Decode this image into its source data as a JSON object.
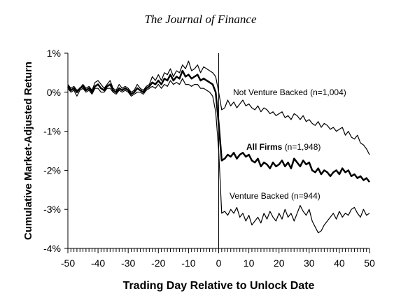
{
  "header": {
    "title": "The Journal of Finance"
  },
  "chart_data": {
    "type": "line",
    "xlabel": "Trading Day Relative to Unlock Date",
    "ylabel": "Cumulative Market-Adjusted Return",
    "xlim": [
      -50,
      50
    ],
    "ylim": [
      -4,
      1
    ],
    "x_ticks": [
      -50,
      -40,
      -30,
      -20,
      -10,
      0,
      10,
      20,
      30,
      40,
      50
    ],
    "y_ticks": [
      {
        "value": 1,
        "label": "1%"
      },
      {
        "value": 0,
        "label": "0%"
      },
      {
        "value": -1,
        "label": "-1%"
      },
      {
        "value": -2,
        "label": "-2%"
      },
      {
        "value": -3,
        "label": "-3%"
      },
      {
        "value": -4,
        "label": "-4%"
      }
    ],
    "reference_line_x": 0,
    "grid": false,
    "x": [
      -50,
      -49,
      -48,
      -47,
      -46,
      -45,
      -44,
      -43,
      -42,
      -41,
      -40,
      -39,
      -38,
      -37,
      -36,
      -35,
      -34,
      -33,
      -32,
      -31,
      -30,
      -29,
      -28,
      -27,
      -26,
      -25,
      -24,
      -23,
      -22,
      -21,
      -20,
      -19,
      -18,
      -17,
      -16,
      -15,
      -14,
      -13,
      -12,
      -11,
      -10,
      -9,
      -8,
      -7,
      -6,
      -5,
      -4,
      -3,
      -2,
      -1,
      0,
      1,
      2,
      3,
      4,
      5,
      6,
      7,
      8,
      9,
      10,
      11,
      12,
      13,
      14,
      15,
      16,
      17,
      18,
      19,
      20,
      21,
      22,
      23,
      24,
      25,
      26,
      27,
      28,
      29,
      30,
      31,
      32,
      33,
      34,
      35,
      36,
      37,
      38,
      39,
      40,
      41,
      42,
      43,
      44,
      45,
      46,
      47,
      48,
      49,
      50
    ],
    "series": [
      {
        "annotation": "Not Venture Backed (n=1,004)",
        "annotation_bold_part": "",
        "stroke_width": 1.2,
        "values": [
          0.2,
          0.1,
          0.15,
          0.05,
          0.1,
          0.2,
          0.1,
          0.15,
          0.05,
          0.25,
          0.3,
          0.2,
          0.1,
          0.2,
          0.3,
          0.1,
          0.05,
          0.2,
          0.1,
          0.15,
          0.1,
          0.0,
          0.05,
          0.2,
          0.1,
          0.05,
          0.15,
          0.2,
          0.4,
          0.3,
          0.45,
          0.3,
          0.5,
          0.45,
          0.6,
          0.4,
          0.55,
          0.5,
          0.7,
          0.6,
          0.8,
          0.55,
          0.6,
          0.7,
          0.5,
          0.65,
          0.6,
          0.55,
          0.5,
          0.4,
          0.0,
          -0.45,
          -0.4,
          -0.2,
          -0.35,
          -0.25,
          -0.4,
          -0.3,
          -0.2,
          -0.35,
          -0.3,
          -0.4,
          -0.45,
          -0.35,
          -0.5,
          -0.4,
          -0.45,
          -0.55,
          -0.5,
          -0.6,
          -0.55,
          -0.5,
          -0.65,
          -0.6,
          -0.7,
          -0.55,
          -0.6,
          -0.7,
          -0.6,
          -0.75,
          -0.7,
          -0.8,
          -0.85,
          -0.75,
          -0.9,
          -0.8,
          -0.85,
          -0.95,
          -0.9,
          -1.0,
          -0.95,
          -0.9,
          -1.1,
          -1.0,
          -1.15,
          -1.2,
          -1.1,
          -1.3,
          -1.35,
          -1.45,
          -1.6
        ]
      },
      {
        "annotation": "(n=1,948)",
        "annotation_bold_part": "All Firms",
        "stroke_width": 2.5,
        "values": [
          0.15,
          0.05,
          0.1,
          0.0,
          0.1,
          0.15,
          0.05,
          0.1,
          0.0,
          0.15,
          0.2,
          0.1,
          0.05,
          0.15,
          0.2,
          0.05,
          0.0,
          0.1,
          0.05,
          0.1,
          0.05,
          -0.05,
          0.0,
          0.1,
          0.05,
          0.0,
          0.1,
          0.15,
          0.25,
          0.2,
          0.3,
          0.2,
          0.35,
          0.3,
          0.45,
          0.3,
          0.4,
          0.35,
          0.55,
          0.4,
          0.45,
          0.35,
          0.4,
          0.45,
          0.3,
          0.35,
          0.3,
          0.25,
          0.2,
          0.0,
          -0.8,
          -1.75,
          -1.7,
          -1.6,
          -1.65,
          -1.55,
          -1.7,
          -1.6,
          -1.55,
          -1.65,
          -1.6,
          -1.75,
          -1.8,
          -1.7,
          -1.9,
          -1.8,
          -1.85,
          -1.95,
          -1.8,
          -1.9,
          -1.85,
          -1.75,
          -1.9,
          -1.8,
          -1.95,
          -1.7,
          -1.8,
          -1.9,
          -1.75,
          -1.85,
          -1.8,
          -2.0,
          -2.05,
          -1.95,
          -2.1,
          -2.0,
          -2.05,
          -2.15,
          -2.05,
          -2.0,
          -2.1,
          -1.95,
          -2.05,
          -2.0,
          -2.15,
          -2.1,
          -2.2,
          -2.15,
          -2.25,
          -2.2,
          -2.3
        ]
      },
      {
        "annotation": "Venture Backed (n=944)",
        "annotation_bold_part": "",
        "stroke_width": 1.2,
        "values": [
          0.1,
          0.0,
          0.05,
          -0.1,
          0.05,
          0.1,
          0.0,
          0.05,
          -0.05,
          0.1,
          0.1,
          0.0,
          0.0,
          0.1,
          0.1,
          0.0,
          -0.05,
          0.05,
          0.0,
          0.05,
          0.0,
          -0.1,
          -0.05,
          0.0,
          0.0,
          -0.05,
          0.05,
          0.1,
          0.15,
          0.1,
          0.2,
          0.1,
          0.2,
          0.15,
          0.3,
          0.2,
          0.25,
          0.2,
          0.35,
          0.2,
          0.2,
          0.15,
          0.2,
          0.2,
          0.1,
          0.1,
          0.05,
          0.0,
          -0.1,
          -0.5,
          -1.5,
          -3.1,
          -3.05,
          -3.15,
          -3.0,
          -3.1,
          -2.95,
          -3.2,
          -3.1,
          -3.3,
          -3.15,
          -3.4,
          -3.3,
          -3.2,
          -3.35,
          -3.1,
          -3.25,
          -3.05,
          -3.2,
          -3.3,
          -3.1,
          -3.25,
          -3.0,
          -3.2,
          -3.1,
          -3.3,
          -3.1,
          -2.9,
          -3.05,
          -3.15,
          -3.0,
          -3.3,
          -3.45,
          -3.6,
          -3.55,
          -3.4,
          -3.3,
          -3.2,
          -3.1,
          -3.25,
          -3.05,
          -3.2,
          -3.1,
          -3.15,
          -3.0,
          -2.95,
          -3.1,
          -3.2,
          -3.0,
          -3.15,
          -3.1
        ]
      }
    ]
  }
}
